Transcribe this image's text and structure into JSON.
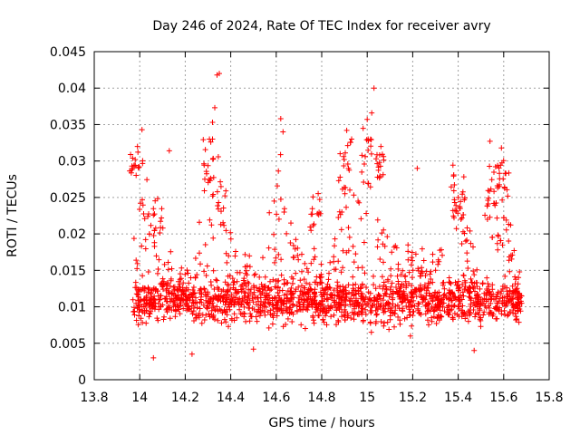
{
  "chart_data": {
    "type": "scatter",
    "title": "Day 246 of 2024, Rate Of TEC Index for receiver avry",
    "xlabel": "GPS time / hours",
    "ylabel": "ROTI / TECUs",
    "xlim": [
      13.8,
      15.8
    ],
    "ylim": [
      0,
      0.045
    ],
    "xticks": [
      "13.8",
      "14",
      "14.2",
      "14.4",
      "14.6",
      "14.8",
      "15",
      "15.2",
      "15.4",
      "15.6",
      "15.8"
    ],
    "yticks": [
      "0",
      "0.005",
      "0.01",
      "0.015",
      "0.02",
      "0.025",
      "0.03",
      "0.035",
      "0.04",
      "0.045"
    ],
    "grid": true,
    "marker": "plus",
    "point_color": "#ff0000",
    "time_range": [
      13.97,
      15.68
    ],
    "notable_points": [
      {
        "x": 14.34,
        "y": 0.0418
      },
      {
        "x": 14.35,
        "y": 0.042
      },
      {
        "x": 14.33,
        "y": 0.0373
      },
      {
        "x": 14.32,
        "y": 0.0353
      },
      {
        "x": 15.03,
        "y": 0.04
      },
      {
        "x": 15.02,
        "y": 0.0366
      },
      {
        "x": 15.0,
        "y": 0.0357
      },
      {
        "x": 14.62,
        "y": 0.0358
      },
      {
        "x": 14.63,
        "y": 0.034
      },
      {
        "x": 14.01,
        "y": 0.0343
      },
      {
        "x": 13.99,
        "y": 0.032
      },
      {
        "x": 13.98,
        "y": 0.0302
      },
      {
        "x": 15.54,
        "y": 0.0327
      },
      {
        "x": 15.59,
        "y": 0.0318
      },
      {
        "x": 14.13,
        "y": 0.0314
      },
      {
        "x": 14.91,
        "y": 0.0342
      },
      {
        "x": 15.06,
        "y": 0.032
      },
      {
        "x": 15.22,
        "y": 0.029
      },
      {
        "x": 15.4,
        "y": 0.025
      },
      {
        "x": 14.06,
        "y": 0.003
      },
      {
        "x": 14.23,
        "y": 0.0035
      },
      {
        "x": 15.47,
        "y": 0.004
      },
      {
        "x": 14.5,
        "y": 0.0042
      },
      {
        "x": 15.19,
        "y": 0.006
      }
    ]
  }
}
